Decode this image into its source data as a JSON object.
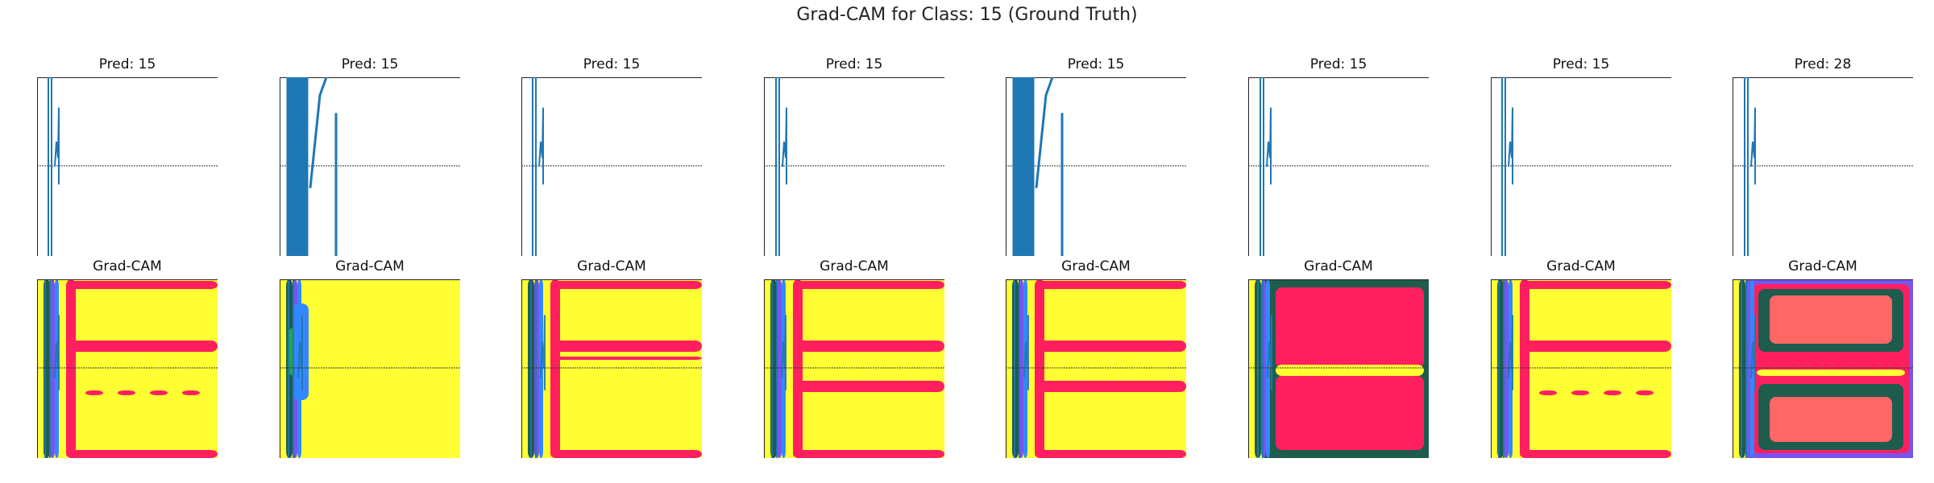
{
  "figure": {
    "title": "Grad-CAM for Class: 15 (Ground Truth)"
  },
  "panels": [
    {
      "pred_title": "Pred: 15",
      "cam_title": "Grad-CAM",
      "cam_pattern": "bands-top"
    },
    {
      "pred_title": "Pred: 15",
      "cam_title": "Grad-CAM",
      "cam_pattern": "mostly-yellow"
    },
    {
      "pred_title": "Pred: 15",
      "cam_title": "Grad-CAM",
      "cam_pattern": "bands-solid"
    },
    {
      "pred_title": "Pred: 15",
      "cam_title": "Grad-CAM",
      "cam_pattern": "bands-double"
    },
    {
      "pred_title": "Pred: 15",
      "cam_title": "Grad-CAM",
      "cam_pattern": "bands-double"
    },
    {
      "pred_title": "Pred: 15",
      "cam_title": "Grad-CAM",
      "cam_pattern": "pink-frame"
    },
    {
      "pred_title": "Pred: 15",
      "cam_title": "Grad-CAM",
      "cam_pattern": "bands-top"
    },
    {
      "pred_title": "Pred: 28",
      "cam_title": "Grad-CAM",
      "cam_pattern": "salmon-frame"
    }
  ],
  "chart_data": {
    "type": "line",
    "grid": false,
    "colors": {
      "signal": "#1f77b4",
      "reference_line": "#333333",
      "heat_yellow": "#ffff33",
      "heat_pink": "#ff1f5f",
      "heat_teal": "#1e5c4d",
      "heat_salmon": "#ff6666",
      "heat_blue": "#3388ff",
      "heat_green": "#22aa33",
      "heat_purple": "#7755ee"
    }
  }
}
